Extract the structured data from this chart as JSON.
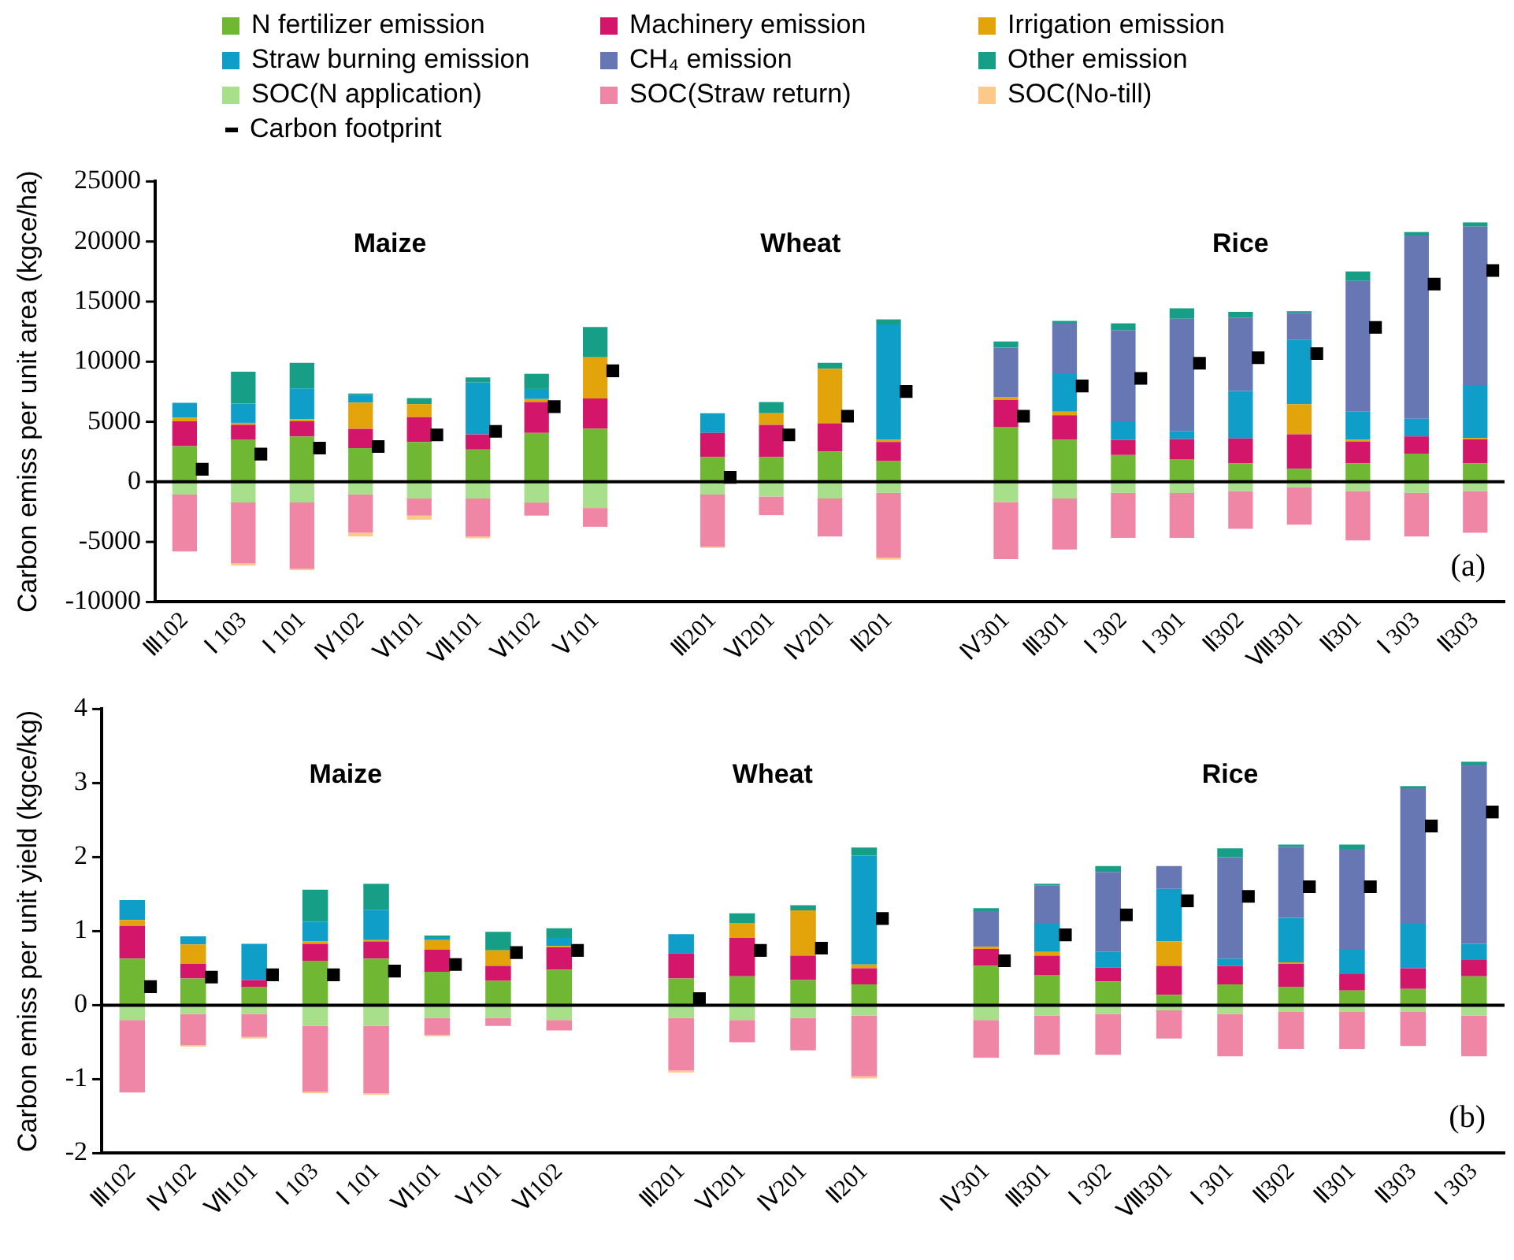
{
  "chart_data": [
    {
      "type": "bar",
      "stacked": true,
      "legend": "top",
      "grid": false,
      "marker": "square",
      "ylabel": "Carbon emiss per unit area (kgce/ha)",
      "ylim": [
        -10000,
        25000
      ],
      "yticks": [
        -10000,
        -5000,
        0,
        5000,
        10000,
        15000,
        20000,
        25000
      ],
      "categories": [
        "Ⅲ102",
        "Ⅰ 103",
        "Ⅰ 101",
        "Ⅳ102",
        "Ⅵ101",
        "Ⅶ101",
        "Ⅵ102",
        "Ⅴ101",
        null,
        "Ⅲ201",
        "Ⅵ201",
        "Ⅳ201",
        "Ⅱ201",
        null,
        "Ⅳ301",
        "Ⅲ301",
        "Ⅰ 302",
        "Ⅰ 301",
        "Ⅱ302",
        "Ⅷ301",
        "Ⅱ301",
        "Ⅰ 303",
        "Ⅱ303"
      ],
      "annotations": [
        "Maize",
        "Wheat",
        "Rice",
        "(a)"
      ],
      "ref_lines": [
        {
          "axis": "y",
          "value": 0,
          "color": "#000000"
        }
      ],
      "series": [
        {
          "name": "N fertilizer emission",
          "color": "#70b833",
          "values": [
            2980,
            3490,
            3780,
            2810,
            3320,
            2690,
            4070,
            4410,
            null,
            2060,
            2060,
            2520,
            1720,
            null,
            4580,
            3490,
            2230,
            1890,
            1550,
            1090,
            1550,
            2350,
            1550
          ]
        },
        {
          "name": "Machinery emission",
          "color": "#d4166b",
          "values": [
            2050,
            1260,
            1260,
            1600,
            2060,
            1260,
            2570,
            2520,
            null,
            2010,
            2690,
            2350,
            1600,
            null,
            2220,
            2050,
            1260,
            1680,
            2060,
            2860,
            1810,
            1430,
            1980
          ]
        },
        {
          "name": "Irrigation emission",
          "color": "#e3a30b",
          "values": [
            300,
            160,
            170,
            2180,
            1090,
            null,
            250,
            3440,
            null,
            null,
            960,
            4540,
            170,
            null,
            260,
            300,
            null,
            null,
            null,
            2520,
            130,
            null,
            120
          ]
        },
        {
          "name": "Straw burning emission",
          "color": "#0f9ec8",
          "values": [
            1250,
            1600,
            2560,
            630,
            null,
            4320,
            840,
            null,
            null,
            1640,
            null,
            null,
            9610,
            null,
            null,
            3190,
            1550,
            670,
            3950,
            5370,
            2350,
            1470,
            4410
          ]
        },
        {
          "name": "CH₄ emission",
          "color": "#6677b3",
          "values": [
            null,
            null,
            null,
            null,
            null,
            null,
            null,
            null,
            null,
            null,
            null,
            null,
            null,
            null,
            4110,
            4200,
            7560,
            9330,
            6090,
            2230,
            10880,
            15250,
            13190
          ]
        },
        {
          "name": "Other emission",
          "color": "#169e87",
          "values": [
            null,
            2650,
            2140,
            130,
            500,
            420,
            1260,
            2520,
            null,
            null,
            930,
            500,
            420,
            null,
            510,
            170,
            590,
            880,
            500,
            130,
            790,
            290,
            340
          ]
        },
        {
          "name": "SOC(N application)",
          "color": "#a8df8a",
          "values": [
            -1050,
            -1720,
            -1720,
            -1050,
            -1390,
            -1390,
            -1720,
            -2180,
            null,
            -1050,
            -1220,
            -1390,
            -920,
            null,
            -1680,
            -1390,
            -920,
            -920,
            -760,
            -460,
            -760,
            -920,
            -760
          ]
        },
        {
          "name": "SOC(Straw return)",
          "color": "#ef86a6",
          "values": [
            -4750,
            -5080,
            -5500,
            -3190,
            -1420,
            -3150,
            -1090,
            -1560,
            null,
            -4330,
            -1550,
            -3150,
            -5380,
            null,
            -4750,
            -4240,
            -3740,
            -3740,
            -3150,
            -3110,
            -4110,
            -3620,
            -3480
          ]
        },
        {
          "name": "SOC(No-till)",
          "color": "#fcc98a",
          "values": [
            null,
            -170,
            -130,
            -300,
            -340,
            -160,
            null,
            null,
            null,
            -120,
            null,
            null,
            -170,
            null,
            null,
            null,
            null,
            null,
            null,
            null,
            null,
            null,
            null
          ]
        },
        {
          "name": "Carbon footprint",
          "type": "scatter",
          "color": "#000000",
          "values": [
            1050,
            2310,
            2810,
            2940,
            3910,
            4200,
            6260,
            9240,
            null,
            380,
            3910,
            5460,
            7520,
            null,
            5460,
            7980,
            8610,
            9870,
            10330,
            10670,
            12850,
            16460,
            17590
          ]
        }
      ]
    },
    {
      "type": "bar",
      "stacked": true,
      "legend": false,
      "grid": false,
      "marker": "square",
      "ylabel": "Carbon emiss per unit yield (kgce/kg)",
      "ylim": [
        -2,
        4
      ],
      "yticks": [
        -2,
        -1,
        0,
        1,
        2,
        3,
        4
      ],
      "categories": [
        "Ⅲ102",
        "Ⅳ102",
        "Ⅶ101",
        "Ⅰ 103",
        "Ⅰ 101",
        "Ⅵ101",
        "Ⅴ101",
        "Ⅵ102",
        null,
        "Ⅲ201",
        "Ⅵ201",
        "Ⅳ201",
        "Ⅱ201",
        null,
        "Ⅳ301",
        "Ⅲ301",
        "Ⅰ 302",
        "Ⅷ301",
        "Ⅰ 301",
        "Ⅱ302",
        "Ⅱ301",
        "Ⅱ303",
        "Ⅰ 303"
      ],
      "annotations": [
        "Maize",
        "Wheat",
        "Rice",
        "(b)"
      ],
      "ref_lines": [
        {
          "axis": "y",
          "value": 0,
          "color": "#000000"
        }
      ],
      "series": [
        {
          "color": "#70b833",
          "values": [
            0.63,
            0.36,
            0.25,
            0.6,
            0.63,
            0.45,
            0.33,
            0.48,
            null,
            0.36,
            0.39,
            0.34,
            0.28,
            null,
            0.53,
            0.41,
            0.32,
            0.14,
            0.28,
            0.25,
            0.2,
            0.22,
            0.39
          ]
        },
        {
          "color": "#d4166b",
          "values": [
            0.44,
            0.2,
            0.09,
            0.23,
            0.23,
            0.3,
            0.2,
            0.3,
            null,
            0.34,
            0.52,
            0.33,
            0.22,
            null,
            0.23,
            0.26,
            0.19,
            0.39,
            0.25,
            0.31,
            0.22,
            0.28,
            0.22
          ]
        },
        {
          "color": "#e3a30b",
          "values": [
            0.08,
            0.26,
            null,
            0.03,
            0.02,
            0.13,
            0.21,
            0.02,
            null,
            null,
            0.2,
            0.61,
            0.05,
            null,
            0.03,
            0.05,
            null,
            0.33,
            null,
            0.02,
            null,
            null,
            null
          ]
        },
        {
          "color": "#0f9ec8",
          "values": [
            0.27,
            0.11,
            0.49,
            0.27,
            0.41,
            0.04,
            null,
            0.11,
            null,
            0.26,
            null,
            null,
            1.47,
            null,
            null,
            0.38,
            0.21,
            0.71,
            0.1,
            0.6,
            0.33,
            0.6,
            0.22
          ]
        },
        {
          "color": "#6677b3",
          "values": [
            null,
            null,
            null,
            null,
            null,
            null,
            null,
            null,
            null,
            null,
            null,
            null,
            null,
            null,
            0.48,
            0.52,
            1.08,
            0.31,
            1.37,
            0.96,
            1.36,
            1.83,
            2.42
          ]
        },
        {
          "color": "#169e87",
          "values": [
            null,
            null,
            null,
            0.43,
            0.35,
            0.02,
            0.25,
            0.13,
            null,
            null,
            0.13,
            0.07,
            0.11,
            null,
            0.04,
            0.02,
            0.08,
            null,
            0.12,
            0.03,
            0.06,
            0.03,
            0.04
          ]
        },
        {
          "color": "#a8df8a",
          "values": [
            -0.2,
            -0.12,
            -0.12,
            -0.28,
            -0.28,
            -0.17,
            -0.17,
            -0.2,
            null,
            -0.17,
            -0.2,
            -0.17,
            -0.14,
            null,
            -0.2,
            -0.14,
            -0.12,
            -0.07,
            -0.12,
            -0.09,
            -0.09,
            -0.09,
            -0.14
          ]
        },
        {
          "color": "#ef86a6",
          "values": [
            -0.98,
            -0.42,
            -0.31,
            -0.89,
            -0.91,
            -0.23,
            -0.11,
            -0.14,
            null,
            -0.71,
            -0.3,
            -0.44,
            -0.82,
            null,
            -0.51,
            -0.53,
            -0.55,
            -0.38,
            -0.57,
            -0.5,
            -0.5,
            -0.46,
            -0.55
          ]
        },
        {
          "color": "#fcc98a",
          "values": [
            null,
            -0.02,
            -0.02,
            -0.02,
            -0.02,
            -0.02,
            null,
            null,
            null,
            -0.03,
            null,
            null,
            -0.03,
            null,
            null,
            null,
            null,
            null,
            null,
            null,
            null,
            null,
            null
          ]
        },
        {
          "type": "scatter",
          "color": "#000000",
          "values": [
            0.25,
            0.38,
            0.41,
            0.41,
            0.46,
            0.55,
            0.71,
            0.74,
            null,
            0.09,
            0.74,
            0.77,
            1.17,
            null,
            0.6,
            0.95,
            1.22,
            1.41,
            1.47,
            1.6,
            1.6,
            2.42,
            2.61
          ]
        }
      ]
    }
  ]
}
